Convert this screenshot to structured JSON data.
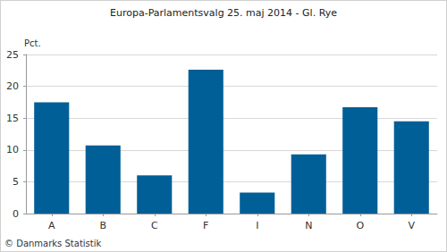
{
  "chart_data": {
    "type": "bar",
    "title": "Europa-Parlamentsvalg 25. maj 2014 - Gl. Rye",
    "ylabel": "Pct.",
    "annotations": [
      "© Danmarks Statistik"
    ],
    "categories": [
      "A",
      "B",
      "C",
      "F",
      "I",
      "N",
      "O",
      "V"
    ],
    "values": [
      17.5,
      10.7,
      6.0,
      22.6,
      3.3,
      9.3,
      16.7,
      14.5
    ],
    "color": "#005f96",
    "ylim": [
      0,
      25
    ],
    "yticks": [
      0,
      5,
      10,
      15,
      20,
      25
    ],
    "grid": true
  }
}
